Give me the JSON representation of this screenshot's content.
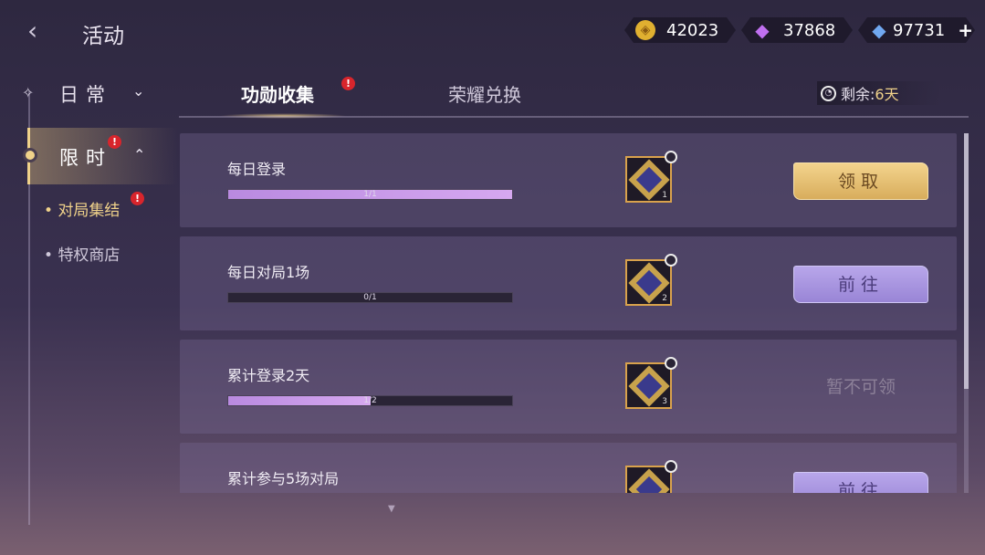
{
  "header": {
    "title": "活动",
    "back_icon": "chevron-left-icon"
  },
  "currencies": [
    {
      "icon": "gold-coin-icon",
      "value": "42023"
    },
    {
      "icon": "purple-diamond-icon",
      "value": "37868"
    },
    {
      "icon": "blue-crystal-icon",
      "value": "97731",
      "add": "+"
    }
  ],
  "sidebar": {
    "groups": [
      {
        "label": "日常",
        "expanded": false
      },
      {
        "label": "限时",
        "expanded": true,
        "alert": "!"
      }
    ],
    "items": [
      {
        "label": "对局集结",
        "active": true,
        "alert": "!"
      },
      {
        "label": "特权商店"
      }
    ]
  },
  "tabs": [
    {
      "label": "功勋收集",
      "active": true,
      "alert": "!"
    },
    {
      "label": "荣耀兑换"
    }
  ],
  "remaining": {
    "label": "剩余:",
    "value": "6天"
  },
  "tasks": [
    {
      "title": "每日登录",
      "progress": "1/1",
      "fraction": 1,
      "reward_count": "1",
      "button": "领取",
      "state": "claim"
    },
    {
      "title": "每日对局1场",
      "progress": "0/1",
      "fraction": 0,
      "reward_count": "2",
      "button": "前往",
      "state": "go"
    },
    {
      "title": "累计登录2天",
      "progress": "1/2",
      "fraction": 0.5,
      "reward_count": "3",
      "button": "暂不可领",
      "state": "disabled"
    },
    {
      "title": "累计参与5场对局",
      "progress": "",
      "fraction": 0,
      "reward_count": "",
      "button": "前往",
      "state": "go"
    }
  ],
  "colors": {
    "gold": "#f3d38d",
    "purple": "#b8a6ea",
    "progress": "#c89ae8",
    "alert": "#d8252c"
  }
}
